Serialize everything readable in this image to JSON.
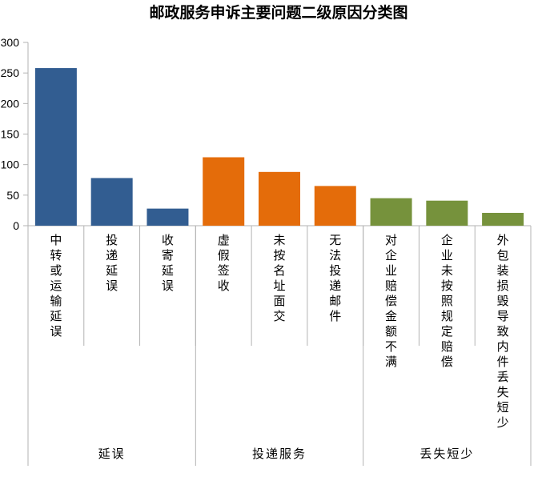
{
  "chart_data": {
    "type": "bar",
    "title": "邮政服务申诉主要问题二级原因分类图",
    "ylim": [
      0,
      300
    ],
    "yticks": [
      0,
      50,
      100,
      150,
      200,
      250,
      300
    ],
    "grid": false,
    "legend": "none",
    "categories": [
      "中转或运输延误",
      "投递延误",
      "收寄延误",
      "虚假签收",
      "未按名址面交",
      "无法投递邮件",
      "对企业赔偿金额不满",
      "企业未按照规定赔偿",
      "外包装损毁导致内件丢失短少"
    ],
    "values": [
      258,
      78,
      28,
      112,
      88,
      65,
      45,
      41,
      21
    ],
    "bar_colors": [
      "#325d91",
      "#325d91",
      "#325d91",
      "#e46c0a",
      "#e46c0a",
      "#e46c0a",
      "#76923c",
      "#76923c",
      "#76923c"
    ],
    "groups": [
      {
        "label": "延误",
        "size": 3,
        "color": "#325d91"
      },
      {
        "label": "投递服务",
        "size": 3,
        "color": "#e46c0a"
      },
      {
        "label": "丢失短少",
        "size": 3,
        "color": "#76923c"
      }
    ]
  }
}
